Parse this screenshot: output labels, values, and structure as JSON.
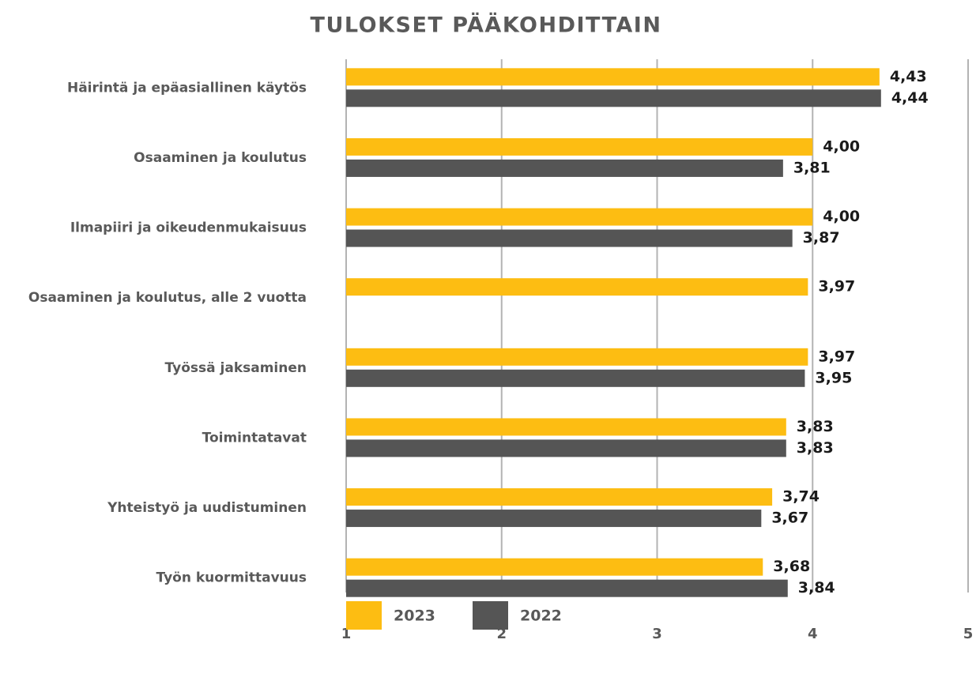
{
  "chart_data": {
    "type": "bar",
    "orientation": "horizontal",
    "title": "TULOKSET PÄÄKOHDITTAIN",
    "categories": [
      "Häirintä ja epäasiallinen käytös",
      "Osaaminen ja koulutus",
      "Ilmapiiri ja oikeudenmukaisuus",
      "Osaaminen ja koulutus, alle 2 vuotta",
      "Työssä jaksaminen",
      "Toimintatavat",
      "Yhteistyö ja uudistuminen",
      "Työn kuormittavuus"
    ],
    "series": [
      {
        "name": "2023",
        "color": "#fdbd12",
        "values": [
          4.43,
          4.0,
          4.0,
          3.97,
          3.97,
          3.83,
          3.74,
          3.68
        ],
        "value_labels": [
          "4,43",
          "4,00",
          "4,00",
          "3,97",
          "3,97",
          "3,83",
          "3,74",
          "3,68"
        ]
      },
      {
        "name": "2022",
        "color": "#555555",
        "values": [
          4.44,
          3.81,
          3.87,
          null,
          3.95,
          3.83,
          3.67,
          3.84
        ],
        "value_labels": [
          "4,44",
          "3,81",
          "3,87",
          null,
          "3,95",
          "3,83",
          "3,67",
          "3,84"
        ]
      }
    ],
    "xlim": [
      1,
      5
    ],
    "xticks": [
      1,
      2,
      3,
      4,
      5
    ],
    "grid": true,
    "legend": "bottom"
  }
}
